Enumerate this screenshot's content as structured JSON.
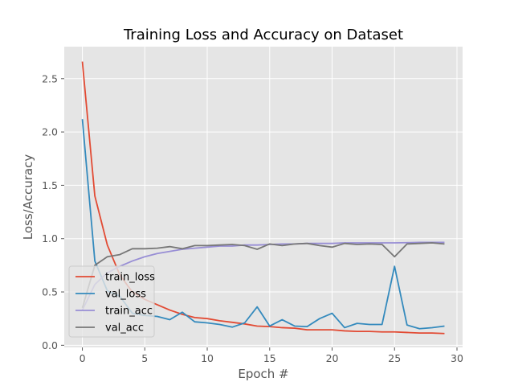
{
  "chart_data": {
    "type": "line",
    "title": "Training Loss and Accuracy on Dataset",
    "xlabel": "Epoch #",
    "ylabel": "Loss/Accuracy",
    "xlim": [
      -1.45,
      30.45
    ],
    "ylim": [
      -0.02,
      2.8
    ],
    "xticks": [
      0,
      5,
      10,
      15,
      20,
      25,
      30
    ],
    "yticks": [
      0.0,
      0.5,
      1.0,
      1.5,
      2.0,
      2.5
    ],
    "xtick_labels": [
      "0",
      "5",
      "10",
      "15",
      "20",
      "25",
      "30"
    ],
    "ytick_labels": [
      "0.0",
      "0.5",
      "1.0",
      "1.5",
      "2.0",
      "2.5"
    ],
    "grid": true,
    "legend_position": "lower-left",
    "x": [
      0,
      1,
      2,
      3,
      4,
      5,
      6,
      7,
      8,
      9,
      10,
      11,
      12,
      13,
      14,
      15,
      16,
      17,
      18,
      19,
      20,
      21,
      22,
      23,
      24,
      25,
      26,
      27,
      28,
      29
    ],
    "series": [
      {
        "name": "train_loss",
        "color": "#e24a33",
        "values": [
          2.66,
          1.4,
          0.94,
          0.66,
          0.5,
          0.43,
          0.38,
          0.33,
          0.29,
          0.26,
          0.25,
          0.23,
          0.215,
          0.2,
          0.18,
          0.175,
          0.165,
          0.16,
          0.145,
          0.145,
          0.145,
          0.135,
          0.13,
          0.13,
          0.125,
          0.125,
          0.12,
          0.115,
          0.115,
          0.11
        ]
      },
      {
        "name": "val_loss",
        "color": "#348abd",
        "values": [
          2.12,
          0.79,
          0.51,
          0.46,
          0.3,
          0.28,
          0.27,
          0.24,
          0.31,
          0.22,
          0.21,
          0.195,
          0.17,
          0.21,
          0.36,
          0.18,
          0.24,
          0.18,
          0.175,
          0.25,
          0.3,
          0.165,
          0.205,
          0.195,
          0.195,
          0.74,
          0.19,
          0.155,
          0.165,
          0.18
        ]
      },
      {
        "name": "train_acc",
        "color": "#988ed5",
        "values": [
          0.33,
          0.57,
          0.68,
          0.74,
          0.79,
          0.83,
          0.86,
          0.88,
          0.9,
          0.91,
          0.92,
          0.93,
          0.93,
          0.94,
          0.94,
          0.945,
          0.95,
          0.95,
          0.955,
          0.955,
          0.955,
          0.96,
          0.96,
          0.96,
          0.96,
          0.96,
          0.962,
          0.965,
          0.965,
          0.965
        ]
      },
      {
        "name": "val_acc",
        "color": "#777777",
        "values": [
          0.35,
          0.75,
          0.83,
          0.85,
          0.905,
          0.905,
          0.91,
          0.925,
          0.905,
          0.935,
          0.935,
          0.94,
          0.945,
          0.935,
          0.9,
          0.95,
          0.935,
          0.95,
          0.955,
          0.935,
          0.92,
          0.955,
          0.945,
          0.95,
          0.945,
          0.83,
          0.95,
          0.955,
          0.96,
          0.95
        ]
      }
    ]
  }
}
